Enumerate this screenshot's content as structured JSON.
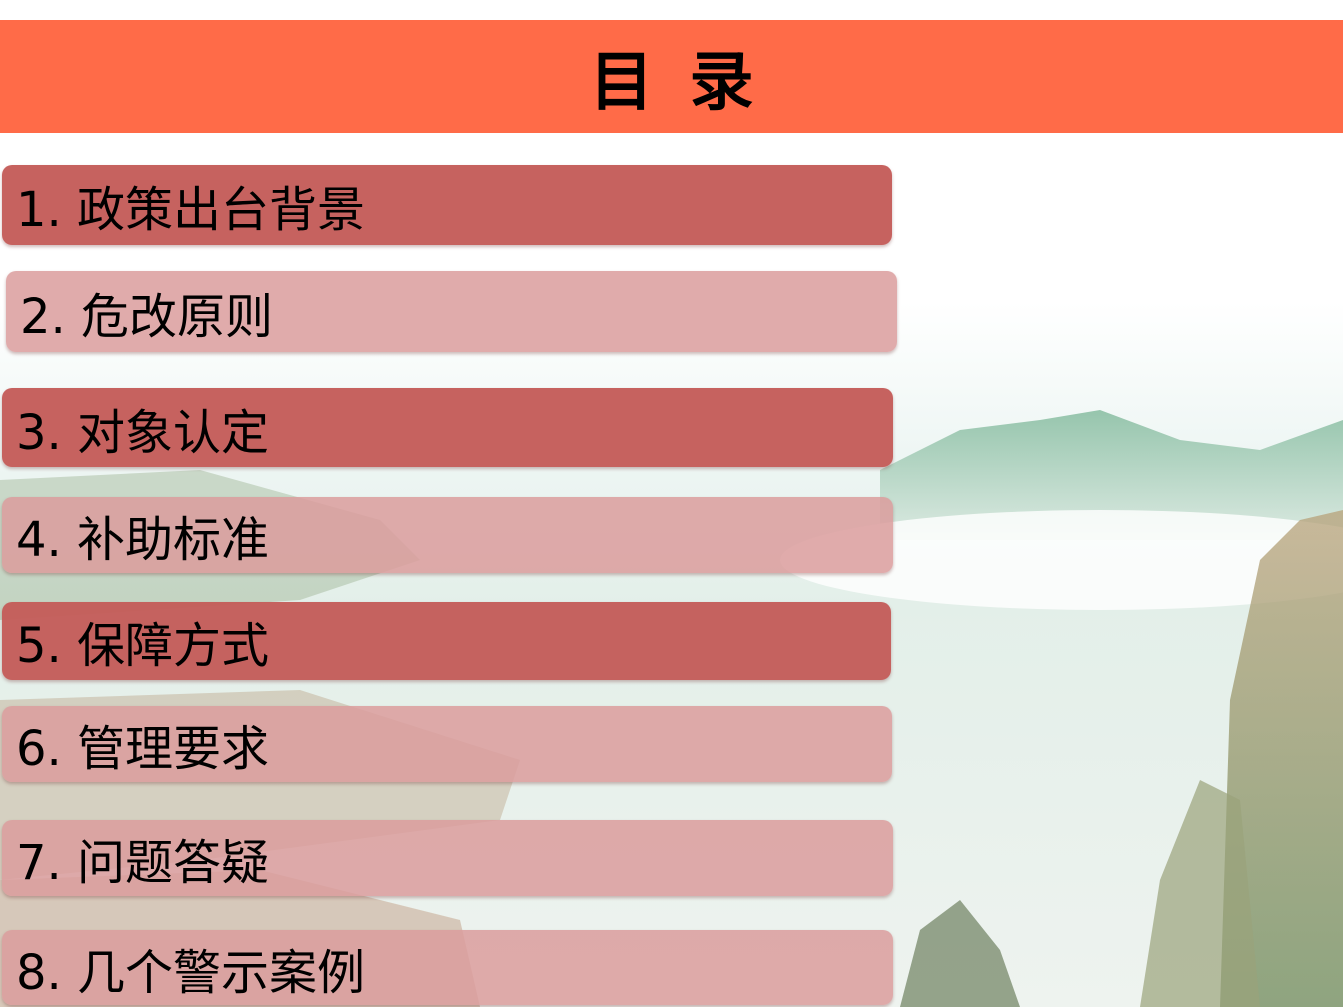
{
  "title": "目录",
  "colors": {
    "title_bar": "#FF6B48",
    "item_dark": "#C45F5B",
    "item_light": "#DEA8A8"
  },
  "items": [
    {
      "label": "1.  政策出台背景",
      "style": "dark"
    },
    {
      "label": "2. 危改原则",
      "style": "light"
    },
    {
      "label": "3. 对象认定",
      "style": "dark"
    },
    {
      "label": "4. 补助标准",
      "style": "light"
    },
    {
      "label": "5. 保障方式",
      "style": "dark"
    },
    {
      "label": "6. 管理要求",
      "style": "light"
    },
    {
      "label": "7. 问题答疑",
      "style": "light"
    },
    {
      "label": "8. 几个警示案例",
      "style": "light"
    }
  ]
}
